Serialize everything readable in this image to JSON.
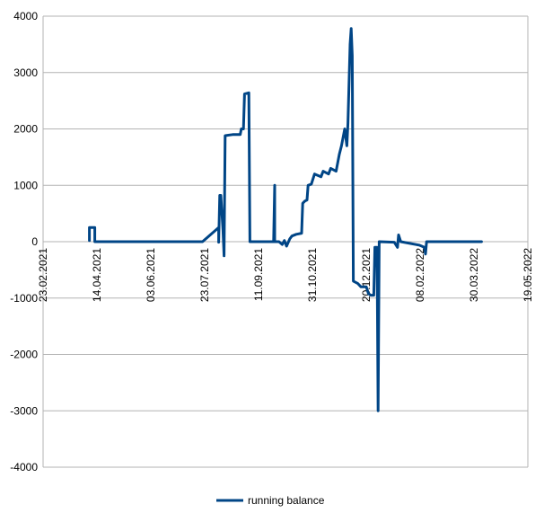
{
  "chart_data": {
    "type": "line",
    "title": "",
    "xlabel": "",
    "ylabel": "",
    "x_ticks": [
      "23.02.2021",
      "14.04.2021",
      "03.06.2021",
      "23.07.2021",
      "11.09.2021",
      "31.10.2021",
      "20.12.2021",
      "08.02.2022",
      "30.03.2022",
      "19.05.2022"
    ],
    "xlim": [
      "2021-02-23",
      "2022-05-19"
    ],
    "y_ticks": [
      4000,
      3000,
      2000,
      1000,
      0,
      -1000,
      -2000,
      -3000,
      -4000
    ],
    "ylim": [
      -4000,
      4000
    ],
    "grid": "horizontal",
    "legend_position": "bottom",
    "colors": {
      "series": "#004586",
      "grid": "#b3b3b3"
    },
    "series": [
      {
        "name": "running balance",
        "points": [
          [
            "2021-04-07",
            20
          ],
          [
            "2021-04-07",
            250
          ],
          [
            "2021-04-12",
            250
          ],
          [
            "2021-04-12",
            0
          ],
          [
            "2021-07-21",
            0
          ],
          [
            "2021-08-05",
            250
          ],
          [
            "2021-08-05",
            -10
          ],
          [
            "2021-08-06",
            820
          ],
          [
            "2021-08-07",
            820
          ],
          [
            "2021-08-09",
            200
          ],
          [
            "2021-08-10",
            -250
          ],
          [
            "2021-08-11",
            1880
          ],
          [
            "2021-08-18",
            1900
          ],
          [
            "2021-08-25",
            1900
          ],
          [
            "2021-08-26",
            2000
          ],
          [
            "2021-08-28",
            2000
          ],
          [
            "2021-08-29",
            2620
          ],
          [
            "2021-09-02",
            2640
          ],
          [
            "2021-09-03",
            0
          ],
          [
            "2021-09-25",
            0
          ],
          [
            "2021-09-26",
            1000
          ],
          [
            "2021-09-26",
            0
          ],
          [
            "2021-09-30",
            0
          ],
          [
            "2021-10-03",
            -50
          ],
          [
            "2021-10-05",
            20
          ],
          [
            "2021-10-07",
            -80
          ],
          [
            "2021-10-10",
            50
          ],
          [
            "2021-10-12",
            100
          ],
          [
            "2021-10-16",
            130
          ],
          [
            "2021-10-21",
            150
          ],
          [
            "2021-10-22",
            680
          ],
          [
            "2021-10-24",
            720
          ],
          [
            "2021-10-26",
            740
          ],
          [
            "2021-10-27",
            1000
          ],
          [
            "2021-10-30",
            1020
          ],
          [
            "2021-11-02",
            1200
          ],
          [
            "2021-11-08",
            1150
          ],
          [
            "2021-11-10",
            1250
          ],
          [
            "2021-11-15",
            1200
          ],
          [
            "2021-11-17",
            1300
          ],
          [
            "2021-11-22",
            1250
          ],
          [
            "2021-11-25",
            1550
          ],
          [
            "2021-11-27",
            1700
          ],
          [
            "2021-11-30",
            2000
          ],
          [
            "2021-12-02",
            1700
          ],
          [
            "2021-12-03",
            2100
          ],
          [
            "2021-12-05",
            3500
          ],
          [
            "2021-12-06",
            3780
          ],
          [
            "2021-12-07",
            3300
          ],
          [
            "2021-12-08",
            -700
          ],
          [
            "2021-12-12",
            -740
          ],
          [
            "2021-12-15",
            -800
          ],
          [
            "2021-12-20",
            -800
          ],
          [
            "2021-12-22",
            -920
          ],
          [
            "2021-12-24",
            -950
          ],
          [
            "2021-12-27",
            -950
          ],
          [
            "2021-12-28",
            -100
          ],
          [
            "2021-12-30",
            -100
          ],
          [
            "2021-12-31",
            -3000
          ],
          [
            "2022-01-01",
            0
          ],
          [
            "2022-01-15",
            -10
          ],
          [
            "2022-01-18",
            -100
          ],
          [
            "2022-01-19",
            120
          ],
          [
            "2022-01-21",
            0
          ],
          [
            "2022-02-07",
            -60
          ],
          [
            "2022-02-12",
            -100
          ],
          [
            "2022-02-13",
            -220
          ],
          [
            "2022-02-14",
            0
          ],
          [
            "2022-04-06",
            0
          ]
        ]
      }
    ]
  }
}
